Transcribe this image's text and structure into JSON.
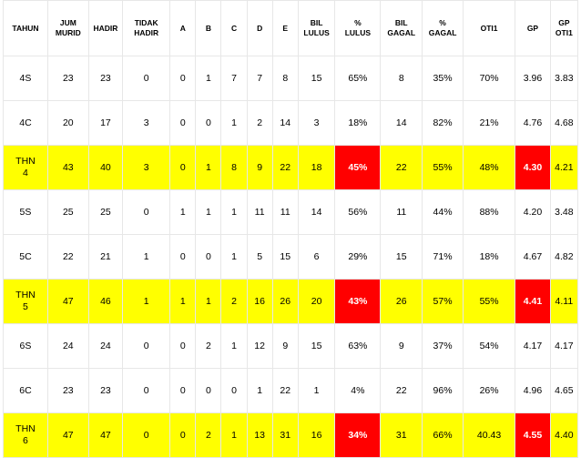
{
  "headers": [
    "TAHUN",
    "JUM\nMURID",
    "HADIR",
    "TIDAK\nHADIR",
    "A",
    "B",
    "C",
    "D",
    "E",
    "BIL\nLULUS",
    "%\nLULUS",
    "BIL\nGAGAL",
    "%\nGAGAL",
    "OTI1",
    "GP",
    "GP\nOTI1"
  ],
  "rows": [
    [
      "4S",
      "23",
      "23",
      "0",
      "0",
      "1",
      "7",
      "7",
      "8",
      "15",
      "65%",
      "8",
      "35%",
      "70%",
      "3.96",
      "3.83"
    ],
    [
      "4C",
      "20",
      "17",
      "3",
      "0",
      "0",
      "1",
      "2",
      "14",
      "3",
      "18%",
      "14",
      "82%",
      "21%",
      "4.76",
      "4.68"
    ],
    [
      "THN\n4",
      "43",
      "40",
      "3",
      "0",
      "1",
      "8",
      "9",
      "22",
      "18",
      "45%",
      "22",
      "55%",
      "48%",
      "4.30",
      "4.21"
    ],
    [
      "5S",
      "25",
      "25",
      "0",
      "1",
      "1",
      "1",
      "11",
      "11",
      "14",
      "56%",
      "11",
      "44%",
      "88%",
      "4.20",
      "3.48"
    ],
    [
      "5C",
      "22",
      "21",
      "1",
      "0",
      "0",
      "1",
      "5",
      "15",
      "6",
      "29%",
      "15",
      "71%",
      "18%",
      "4.67",
      "4.82"
    ],
    [
      "THN\n5",
      "47",
      "46",
      "1",
      "1",
      "1",
      "2",
      "16",
      "26",
      "20",
      "43%",
      "26",
      "57%",
      "55%",
      "4.41",
      "4.11"
    ],
    [
      "6S",
      "24",
      "24",
      "0",
      "0",
      "2",
      "1",
      "12",
      "9",
      "15",
      "63%",
      "9",
      "37%",
      "54%",
      "4.17",
      "4.17"
    ],
    [
      "6C",
      "23",
      "23",
      "0",
      "0",
      "0",
      "0",
      "1",
      "22",
      "1",
      "4%",
      "22",
      "96%",
      "26%",
      "4.96",
      "4.65"
    ],
    [
      "THN\n6",
      "47",
      "47",
      "0",
      "0",
      "2",
      "1",
      "13",
      "31",
      "16",
      "34%",
      "31",
      "66%",
      "40.43",
      "4.55",
      "4.40"
    ]
  ],
  "colors": {
    "summary_row_background": "#ffff00",
    "highlight_cell_background": "#ff0000",
    "highlight_cell_text": "#ffffff"
  }
}
